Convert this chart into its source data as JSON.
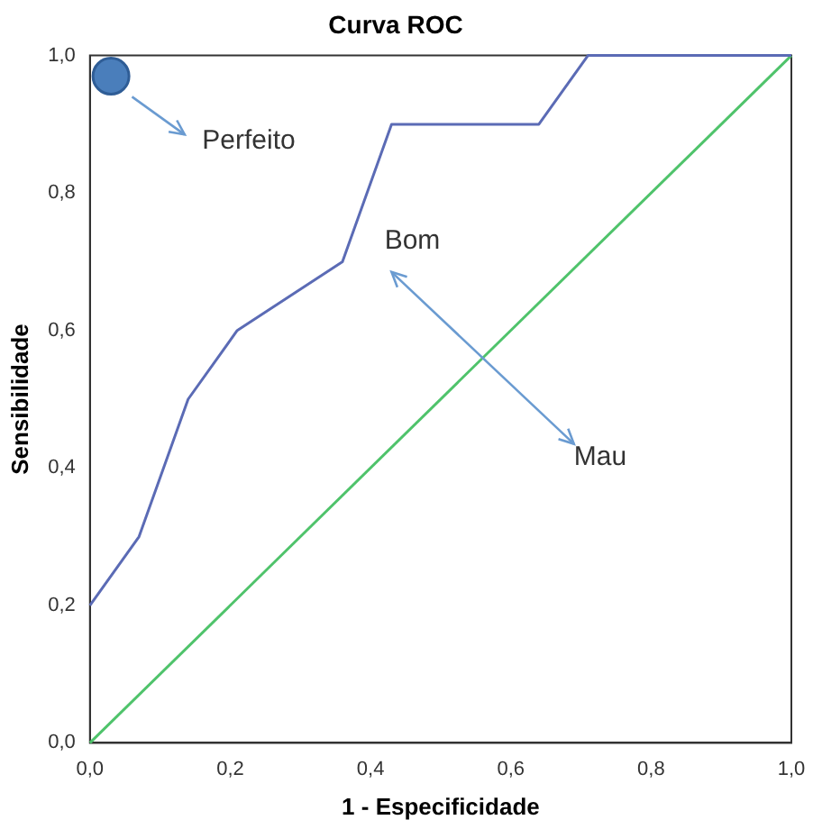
{
  "chart_data": {
    "type": "line",
    "title": "Curva ROC",
    "xlabel": "1 - Especificidade",
    "ylabel": "Sensibilidade",
    "xlim": [
      0,
      1
    ],
    "ylim": [
      0,
      1
    ],
    "xticks": [
      {
        "value": 0,
        "label": "0,0"
      },
      {
        "value": 0.2,
        "label": "0,2"
      },
      {
        "value": 0.4,
        "label": "0,4"
      },
      {
        "value": 0.6,
        "label": "0,6"
      },
      {
        "value": 0.8,
        "label": "0,8"
      },
      {
        "value": 1,
        "label": "1,0"
      }
    ],
    "yticks": [
      {
        "value": 0,
        "label": "0,0"
      },
      {
        "value": 0.2,
        "label": "0,2"
      },
      {
        "value": 0.4,
        "label": "0,4"
      },
      {
        "value": 0.6,
        "label": "0,6"
      },
      {
        "value": 0.8,
        "label": "0,8"
      },
      {
        "value": 1,
        "label": "1,0"
      }
    ],
    "series": [
      {
        "color": "#4fc36b",
        "x": [
          0,
          1
        ],
        "values": [
          0,
          1
        ]
      },
      {
        "color": "#5b6bb5",
        "x": [
          0,
          0.07,
          0.14,
          0.21,
          0.36,
          0.43,
          0.64,
          0.71,
          1
        ],
        "values": [
          0.2,
          0.3,
          0.5,
          0.6,
          0.7,
          0.9,
          0.9,
          1,
          1
        ]
      },
      {
        "type": "scatter",
        "marker": "circle",
        "color": "#4a7ebb",
        "x": [
          0.03
        ],
        "values": [
          0.97
        ]
      }
    ],
    "annotations": [
      "Perfeito",
      "Bom",
      "Mau"
    ]
  }
}
